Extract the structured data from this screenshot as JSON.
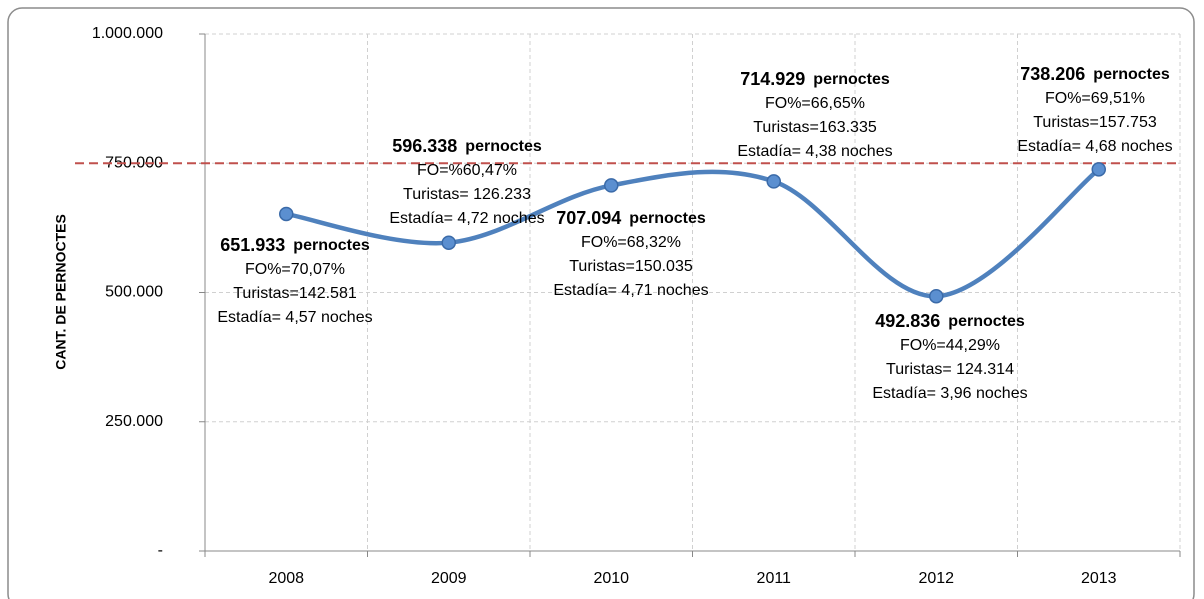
{
  "chart_data": {
    "type": "line",
    "y_axis_label": "CANT. DE PERNOCTES",
    "categories": [
      "2008",
      "2009",
      "2010",
      "2011",
      "2012",
      "2013"
    ],
    "series": [
      {
        "name": "pernoctes",
        "color": "#4f81bd",
        "values": [
          651933,
          596338,
          707094,
          714929,
          492836,
          738206
        ],
        "value_labels": [
          "651.933",
          "596.338",
          "707.094",
          "714.929",
          "492.836",
          "738.206"
        ]
      }
    ],
    "annotations": [
      [
        "FO%=70,07%",
        "Turistas=142.581",
        "Estadía= 4,57 noches"
      ],
      [
        "FO=%60,47%",
        "Turistas= 126.233",
        "Estadía= 4,72 noches"
      ],
      [
        "FO%=68,32%",
        "Turistas=150.035",
        "Estadía= 4,71 noches"
      ],
      [
        "FO%=66,65%",
        "Turistas=163.335",
        "Estadía= 4,38 noches"
      ],
      [
        "FO%=44,29%",
        "Turistas= 124.314",
        "Estadía= 3,96 noches"
      ],
      [
        "FO%=69,51%",
        "Turistas=157.753",
        "Estadía= 4,68 noches"
      ]
    ],
    "reference_line": {
      "value": 750000,
      "color": "#c0504d"
    },
    "ylim": [
      0,
      1000000
    ],
    "yticks": [
      {
        "value": 0,
        "label": "-"
      },
      {
        "value": 250000,
        "label": "250.000"
      },
      {
        "value": 500000,
        "label": "500.000"
      },
      {
        "value": 750000,
        "label": "750.000"
      },
      {
        "value": 1000000,
        "label": "1.000.000"
      }
    ],
    "grid": true
  }
}
